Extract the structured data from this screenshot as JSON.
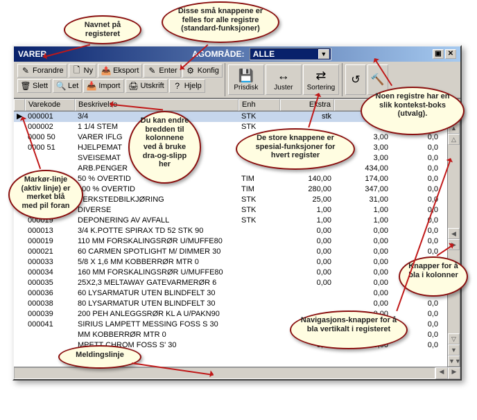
{
  "window": {
    "title": "VARER",
    "context_label": "AGOMRÅDE:",
    "context_value": "ALLE"
  },
  "toolbar_small": {
    "row1": [
      {
        "icon": "✎",
        "label": "Forandre"
      },
      {
        "icon": "🗋",
        "label": "Ny"
      },
      {
        "icon": "📤",
        "label": "Eksport"
      },
      {
        "icon": "✎",
        "label": "Enter"
      },
      {
        "icon": "⚙",
        "label": "Konfig"
      }
    ],
    "row2": [
      {
        "icon": "🗑",
        "label": "Slett"
      },
      {
        "icon": "🔍",
        "label": "Let"
      },
      {
        "icon": "📥",
        "label": "Import"
      },
      {
        "icon": "🖨",
        "label": "Utskrift"
      },
      {
        "icon": "?",
        "label": "Hjelp"
      }
    ]
  },
  "toolbar_big": [
    {
      "icon": "💾",
      "label": "Prisdisk"
    },
    {
      "icon": "↔",
      "label": "Juster"
    },
    {
      "icon": "⇄",
      "label": "Sortering"
    }
  ],
  "toolbar_extra": [
    "↺",
    "🔨"
  ],
  "columns": [
    "",
    "Varekode",
    "Beskrivelse",
    "Enh",
    "Ekstra",
    "",
    ""
  ],
  "rows": [
    [
      "▶",
      "000001",
      "3/4",
      "STK",
      "stk",
      "",
      "0"
    ],
    [
      "",
      "000002",
      "1 1/4 STEM",
      "STK",
      "",
      "",
      ""
    ],
    [
      "",
      "0000  50",
      "VARER IFLG",
      "",
      "",
      "3,00",
      "0,0"
    ],
    [
      "",
      "0000  51",
      "HJELPEMAT",
      "",
      "",
      "3,00",
      "0,0"
    ],
    [
      "",
      "",
      "SVEISEMAT",
      "",
      "",
      "3,00",
      "0,0"
    ],
    [
      "",
      "",
      "ARB.PENGER",
      "",
      "",
      "434,00",
      "0,0"
    ],
    [
      "",
      "",
      "50 % OVERTID",
      "TIM",
      "140,00",
      "174,00",
      "0,0"
    ],
    [
      "",
      "",
      "100 % OVERTID",
      "TIM",
      "280,00",
      "347,00",
      "0,0"
    ],
    [
      "",
      "",
      "VERKSTEDBILKJØRING",
      "STK",
      "25,00",
      "31,00",
      "0,0"
    ],
    [
      "",
      "000059",
      "DIVERSE",
      "STK",
      "1,00",
      "1,00",
      "0,0"
    ],
    [
      "",
      "000019",
      "DEPONERING AV AVFALL",
      "STK",
      "1,00",
      "1,00",
      "0,0"
    ],
    [
      "",
      "000013",
      "3/4 K.POTTE    SPIRAX TD 52 STK   90",
      "",
      "0,00",
      "0,00",
      "0,0"
    ],
    [
      "",
      "000019",
      "110 MM  FORSKALINGSRØR U/MUFFE80",
      "",
      "0,00",
      "0,00",
      "0,0"
    ],
    [
      "",
      "000021",
      "60 CARMEN SPOTLIGHT M/ DIMMER 30",
      "",
      "0,00",
      "0,00",
      "0,0"
    ],
    [
      "",
      "000033",
      "5/8  X 1,6 MM KOBBERRØR MTR            0",
      "",
      "0,00",
      "0,00",
      "0,0"
    ],
    [
      "",
      "000034",
      "160 MM  FORSKALINGSRØR U/MUFFE80",
      "",
      "0,00",
      "0,00",
      "0,0"
    ],
    [
      "",
      "000035",
      "25X2,3 MELTAWAY GATEVARMERØR  6",
      "",
      "0,00",
      "0,00",
      "0,0"
    ],
    [
      "",
      "000036",
      "60 LYSARMATUR  UTEN BLINDFELT 30",
      "",
      "",
      "0,00",
      "0,0"
    ],
    [
      "",
      "000038",
      "80 LYSARMATUR  UTEN BLINDFELT 30",
      "",
      "",
      "0,00",
      "0,0"
    ],
    [
      "",
      "000039",
      "200 PEH ANLEGGSRØR KL A U/PAKN90",
      "",
      "",
      "0,00",
      "0,0"
    ],
    [
      "",
      "000041",
      "SIRIUS LAMPETT MESSING    FOSS S 30",
      "",
      "",
      "0,00",
      "0,0"
    ],
    [
      "",
      "",
      "MM KOBBERRØR MTR             0",
      "",
      "0,00",
      "0,00",
      "0,0"
    ],
    [
      "",
      "",
      "MPETT CHROM      FOSS S' 30",
      "",
      "0,00",
      "0,00",
      "0,0"
    ]
  ],
  "callouts": {
    "c1": "Navnet på\nregisteret",
    "c2": "Disse små knappene\ner felles for alle\nregistre\n(standard-funksjoner)",
    "c3": "Du kan\nendre\nbredden til\nkolonnene\nved å bruke\ndra-og-slipp\nher",
    "c4": "De store knappene er\nspesial-funksjoner for\nhvert register",
    "c5": "Noen registre har\nen slik\nkontekst-boks\n(utvalg).",
    "c6": "Markør-linje\n(aktiv linje)\ner merket blå\nmed pil foran",
    "c7": "Knapper for\nå bla i\nkolonner",
    "c8": "Navigasjons-knapper\nfor å bla vertikalt i\nregisteret",
    "c9": "Meldingslinje"
  }
}
